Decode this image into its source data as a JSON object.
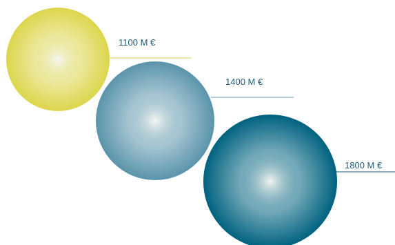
{
  "chart_data": {
    "type": "bubble",
    "unit": "M €",
    "values": [
      1100,
      1400,
      1800
    ],
    "labels": [
      "1100 M €",
      "1400 M €",
      "1800 M €"
    ],
    "colors": [
      "#dcd64c",
      "#5a94ab",
      "#00627f"
    ],
    "label_color": "#1d5c78",
    "leader_colors": [
      "#d7d352",
      "#6b9cb2",
      "#1d5c78"
    ]
  }
}
